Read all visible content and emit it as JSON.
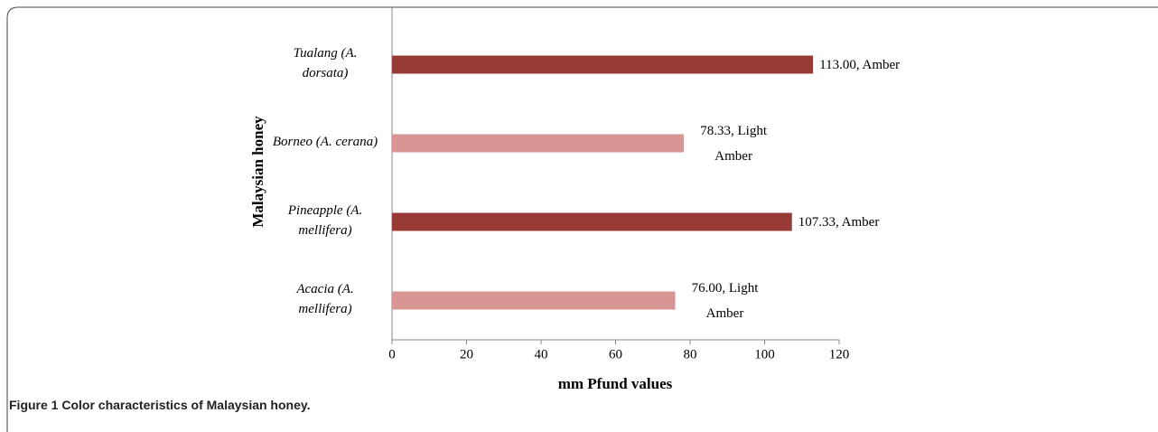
{
  "chart_data": {
    "type": "barh",
    "title": "Figure 1 Color characteristics of Malaysian honey.",
    "xlabel": "mm Pfund values",
    "ylabel": "Malaysian honey",
    "categories": [
      "Tualang (A. dorsata)",
      "Borneo (A. cerana)",
      "Pineapple (A. mellifera)",
      "Acacia (A. mellifera)"
    ],
    "values": [
      113.0,
      78.33,
      107.33,
      76.0
    ],
    "value_labels": [
      "113.00, Amber",
      "78.33, Light Amber",
      "107.33, Amber",
      "76.00, Light Amber"
    ],
    "colors": [
      "#973a36",
      "#d99594",
      "#973a36",
      "#d99594"
    ],
    "xlim": [
      0,
      120
    ],
    "xticks": [
      0,
      20,
      40,
      60,
      80,
      100,
      120
    ],
    "grid": false
  }
}
